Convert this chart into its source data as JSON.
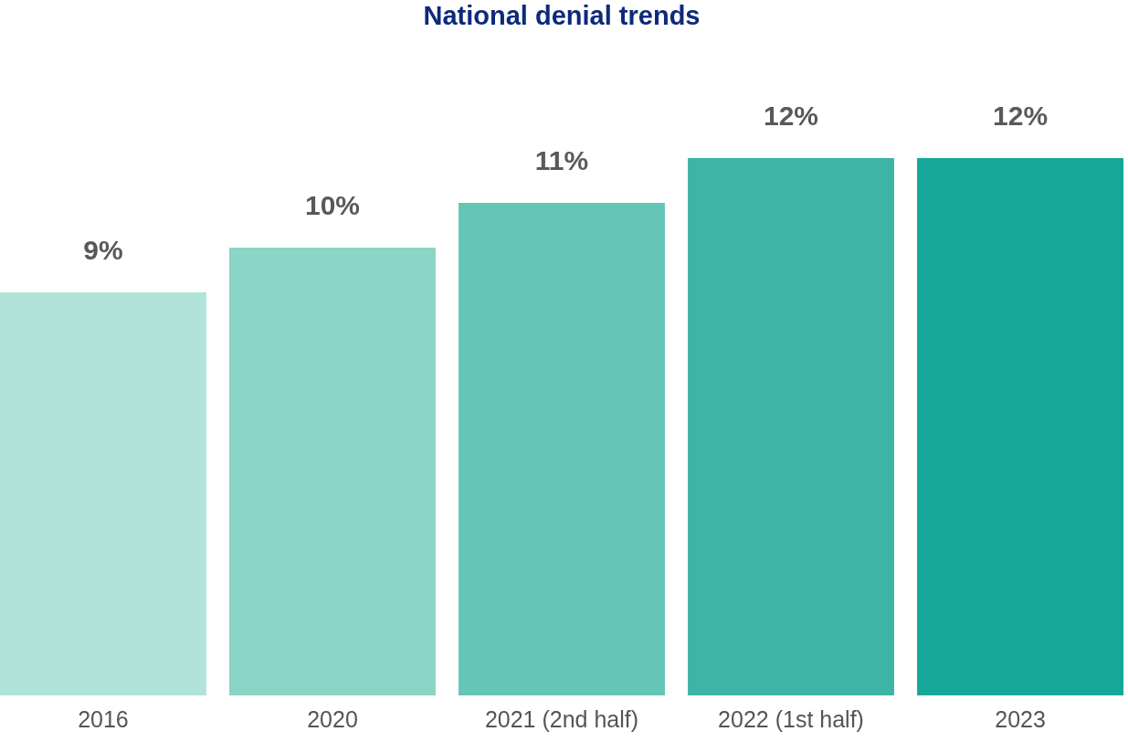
{
  "chart_data": {
    "type": "bar",
    "title": "National denial trends",
    "categories": [
      "2016",
      "2020",
      "2021 (2nd half)",
      "2022 (1st half)",
      "2023"
    ],
    "values": [
      9,
      10,
      11,
      12,
      12
    ],
    "value_labels": [
      "9%",
      "10%",
      "11%",
      "12%",
      "12%"
    ],
    "colors": [
      "#b0e3d9",
      "#8ad5c6",
      "#65c5b6",
      "#3db4a6",
      "#15a798"
    ]
  }
}
